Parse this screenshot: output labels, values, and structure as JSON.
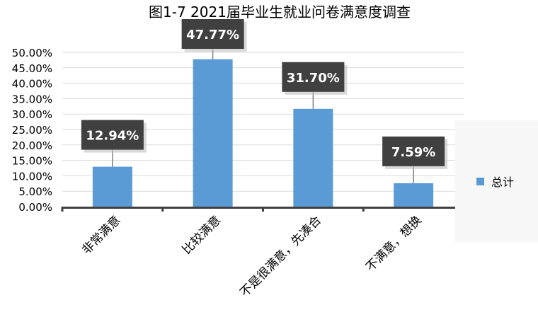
{
  "chart_data": {
    "type": "bar",
    "title": "图1-7  2021届毕业生就业问卷满意度调查",
    "categories": [
      "非常满意",
      "比较满意",
      "不是很满意，先凑合",
      "不满意，想换"
    ],
    "series": [
      {
        "name": "总计",
        "values": [
          12.94,
          47.77,
          31.7,
          7.59
        ],
        "color": "#5B9BD5"
      }
    ],
    "data_labels": [
      "12.94%",
      "47.77%",
      "31.70%",
      "7.59%"
    ],
    "ylim": [
      0,
      50
    ],
    "yticks": [
      0,
      5,
      10,
      15,
      20,
      25,
      30,
      35,
      40,
      45,
      50
    ],
    "ytick_labels": [
      "0.00%",
      "5.00%",
      "10.00%",
      "15.00%",
      "20.00%",
      "25.00%",
      "30.00%",
      "35.00%",
      "40.00%",
      "45.00%",
      "50.00%"
    ],
    "xlabel": "",
    "ylabel": "",
    "grid": true,
    "legend_position": "right"
  }
}
